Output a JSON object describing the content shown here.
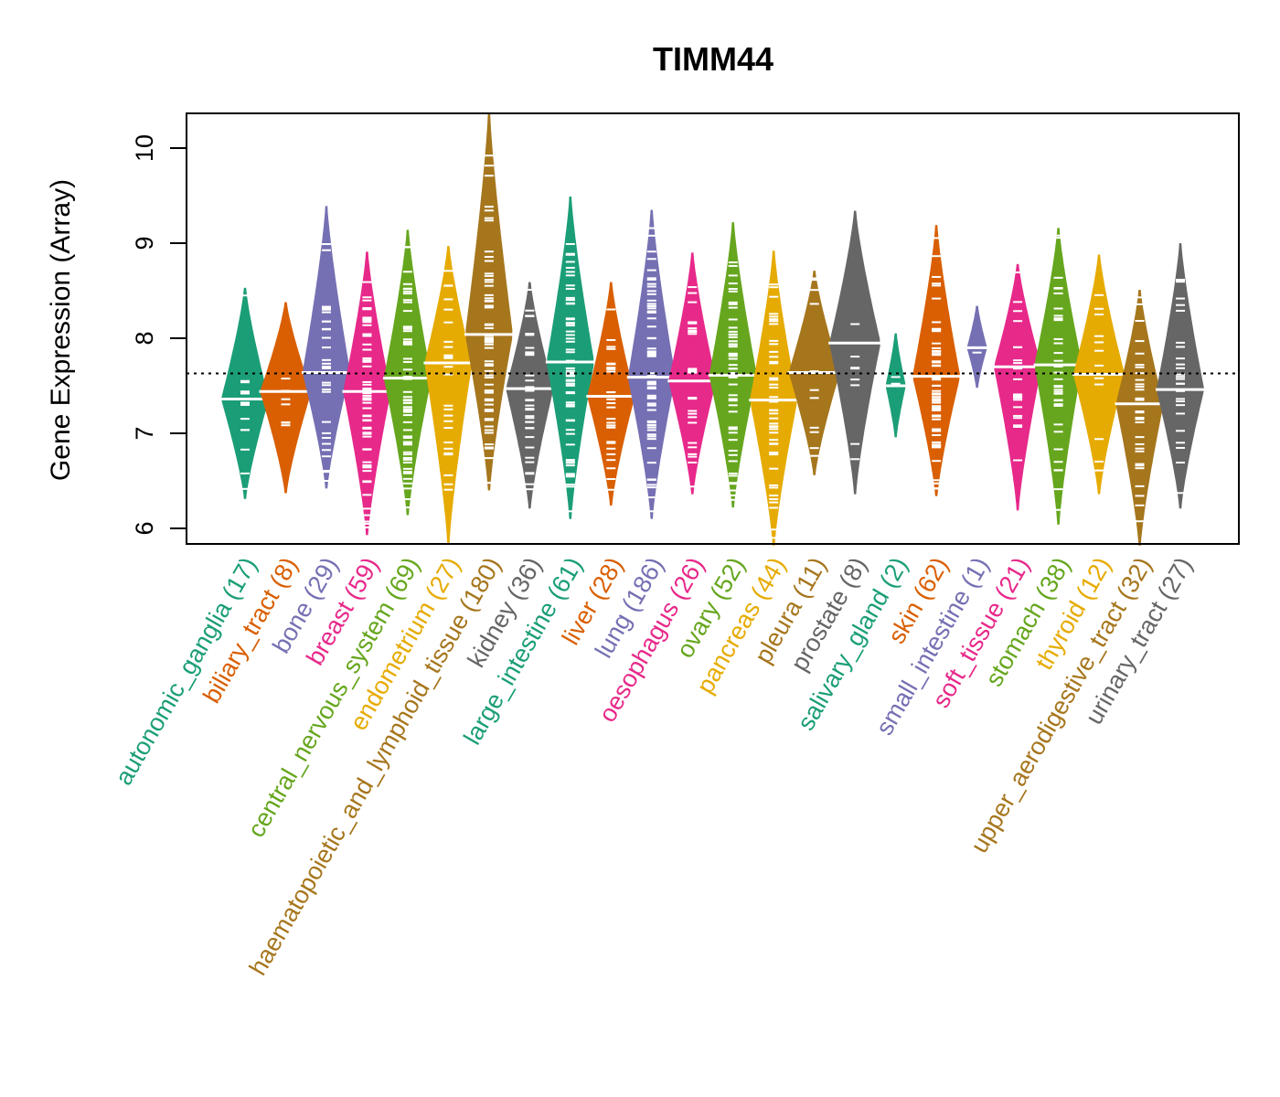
{
  "chart_data": {
    "type": "violin",
    "title": "TIMM44",
    "xlabel": "",
    "ylabel": "Gene Expression (Array)",
    "ylim": [
      5.82,
      10.37
    ],
    "yticks": [
      6,
      7,
      8,
      9,
      10
    ],
    "reference_line": {
      "value": 7.63,
      "style": "dotted",
      "description": "overall median"
    },
    "grid": false,
    "legend": "none",
    "categories": [
      {
        "name": "autonomic_ganglia",
        "n": 17,
        "label": "autonomic_ganglia (17)",
        "color": "#1B9E77",
        "median": 7.36,
        "min": 6.31,
        "max": 8.53
      },
      {
        "name": "biliary_tract",
        "n": 8,
        "label": "biliary_tract (8)",
        "color": "#D95F02",
        "median": 7.44,
        "min": 6.37,
        "max": 8.38
      },
      {
        "name": "bone",
        "n": 29,
        "label": "bone (29)",
        "color": "#7570B3",
        "median": 7.64,
        "min": 6.42,
        "max": 9.39
      },
      {
        "name": "breast",
        "n": 59,
        "label": "breast (59)",
        "color": "#E7298A",
        "median": 7.44,
        "min": 5.93,
        "max": 8.91
      },
      {
        "name": "central_nervous_system",
        "n": 69,
        "label": "central_nervous_system (69)",
        "color": "#66A61E",
        "median": 7.58,
        "min": 6.14,
        "max": 9.14
      },
      {
        "name": "endometrium",
        "n": 27,
        "label": "endometrium (27)",
        "color": "#E6AB02",
        "median": 7.74,
        "min": 5.84,
        "max": 8.97
      },
      {
        "name": "haematopoietic_and_lymphoid_tissue",
        "n": 180,
        "label": "haematopoietic_and_lymphoid_tissue (180)",
        "color": "#A6761D",
        "median": 8.04,
        "min": 6.4,
        "max": 10.37
      },
      {
        "name": "kidney",
        "n": 36,
        "label": "kidney (36)",
        "color": "#666666",
        "median": 7.47,
        "min": 6.21,
        "max": 8.59
      },
      {
        "name": "large_intestine",
        "n": 61,
        "label": "large_intestine (61)",
        "color": "#1B9E77",
        "median": 7.75,
        "min": 6.1,
        "max": 9.49
      },
      {
        "name": "liver",
        "n": 28,
        "label": "liver (28)",
        "color": "#D95F02",
        "median": 7.39,
        "min": 6.24,
        "max": 8.59
      },
      {
        "name": "lung",
        "n": 186,
        "label": "lung (186)",
        "color": "#7570B3",
        "median": 7.59,
        "min": 6.1,
        "max": 9.35
      },
      {
        "name": "oesophagus",
        "n": 26,
        "label": "oesophagus (26)",
        "color": "#E7298A",
        "median": 7.55,
        "min": 6.36,
        "max": 8.9
      },
      {
        "name": "ovary",
        "n": 52,
        "label": "ovary (52)",
        "color": "#66A61E",
        "median": 7.61,
        "min": 6.22,
        "max": 9.22
      },
      {
        "name": "pancreas",
        "n": 44,
        "label": "pancreas (44)",
        "color": "#E6AB02",
        "median": 7.35,
        "min": 5.82,
        "max": 8.92
      },
      {
        "name": "pleura",
        "n": 11,
        "label": "pleura (11)",
        "color": "#A6761D",
        "median": 7.64,
        "min": 6.56,
        "max": 8.71
      },
      {
        "name": "prostate",
        "n": 8,
        "label": "prostate (8)",
        "color": "#666666",
        "median": 7.95,
        "min": 6.36,
        "max": 9.34
      },
      {
        "name": "salivary_gland",
        "n": 2,
        "label": "salivary_gland (2)",
        "color": "#1B9E77",
        "median": 7.5,
        "min": 6.96,
        "max": 8.05
      },
      {
        "name": "skin",
        "n": 62,
        "label": "skin (62)",
        "color": "#D95F02",
        "median": 7.6,
        "min": 6.34,
        "max": 9.19
      },
      {
        "name": "small_intestine",
        "n": 1,
        "label": "small_intestine (1)",
        "color": "#7570B3",
        "median": 7.9,
        "min": 7.48,
        "max": 8.34
      },
      {
        "name": "soft_tissue",
        "n": 21,
        "label": "soft_tissue (21)",
        "color": "#E7298A",
        "median": 7.7,
        "min": 6.19,
        "max": 8.78
      },
      {
        "name": "stomach",
        "n": 38,
        "label": "stomach (38)",
        "color": "#66A61E",
        "median": 7.72,
        "min": 6.04,
        "max": 9.16
      },
      {
        "name": "thyroid",
        "n": 12,
        "label": "thyroid (12)",
        "color": "#E6AB02",
        "median": 7.62,
        "min": 6.36,
        "max": 8.88
      },
      {
        "name": "upper_aerodigestive_tract",
        "n": 32,
        "label": "upper_aerodigestive_tract (32)",
        "color": "#A6761D",
        "median": 7.31,
        "min": 5.82,
        "max": 8.51
      },
      {
        "name": "urinary_tract",
        "n": 27,
        "label": "urinary_tract (27)",
        "color": "#666666",
        "median": 7.46,
        "min": 6.21,
        "max": 9.0
      }
    ]
  }
}
